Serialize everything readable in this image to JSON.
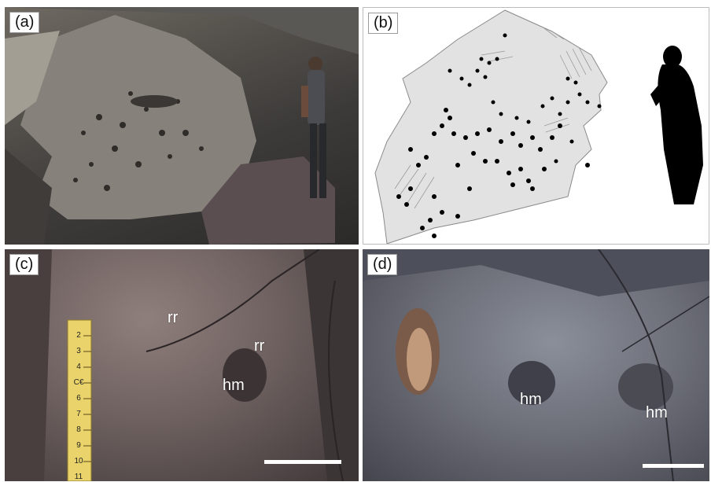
{
  "panels": {
    "a": {
      "label": "(a)"
    },
    "b": {
      "label": "(b)"
    },
    "c": {
      "label": "(c)",
      "annotations": [
        "rr",
        "rr",
        "hm"
      ],
      "ruler_marks": [
        "2",
        "3",
        "4",
        "C€",
        "6",
        "7",
        "8",
        "9",
        "10",
        "11"
      ]
    },
    "d": {
      "label": "(d)",
      "annotations": [
        "hm",
        "hm"
      ]
    }
  },
  "colors": {
    "map_fill": "#e2e2e2",
    "dots": "#000000",
    "scale_bar": "#ffffff",
    "ruler": "#e9d36a"
  }
}
